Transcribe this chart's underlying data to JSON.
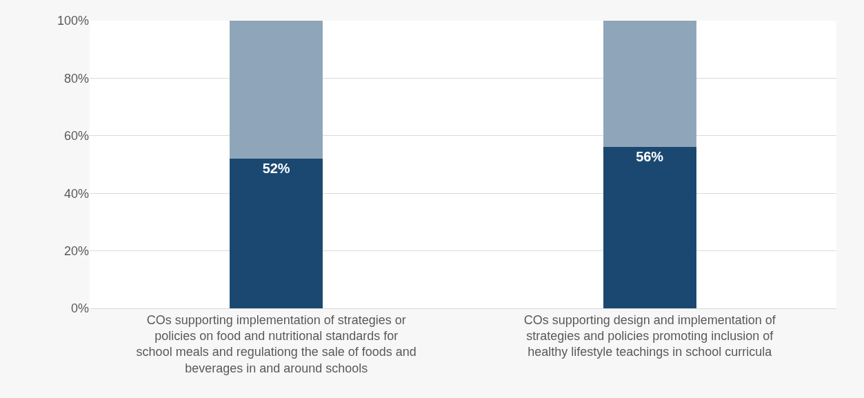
{
  "chart_data": {
    "type": "bar",
    "stacked": true,
    "categories": [
      "COs supporting implementation of strategies or policies on food and nutritional standards for school meals and regulationg the sale of foods and beverages in and around schools",
      "COs supporting design and implementation of strategies and policies promoting inclusion of healthy lifestyle teachings in school curricula"
    ],
    "series": [
      {
        "color": "#1b4870",
        "values": [
          52,
          56
        ],
        "value_labels": [
          "52%",
          "56%"
        ]
      },
      {
        "color": "#8fa6ba",
        "values": [
          48,
          44
        ]
      }
    ],
    "ylim": [
      0,
      100
    ],
    "yticks": [
      {
        "value": 0,
        "label": "0%"
      },
      {
        "value": 20,
        "label": "20%"
      },
      {
        "value": 40,
        "label": "40%"
      },
      {
        "value": 60,
        "label": "60%"
      },
      {
        "value": 80,
        "label": "80%"
      },
      {
        "value": 100,
        "label": "100%"
      }
    ],
    "grid": "y"
  }
}
